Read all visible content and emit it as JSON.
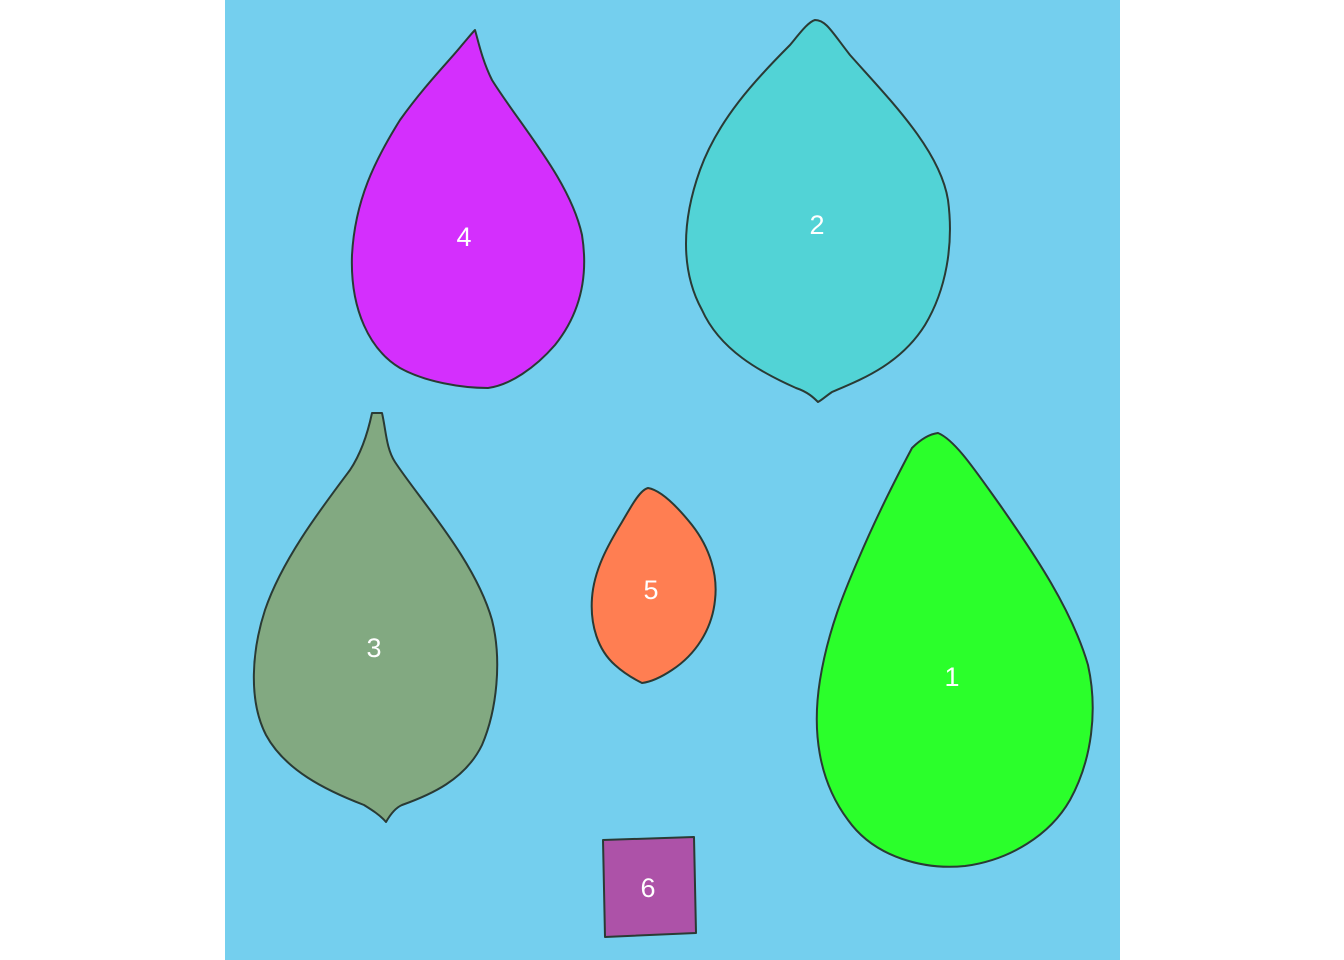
{
  "background_color": "#74cfee",
  "outline_color": "#2a3a34",
  "shapes": [
    {
      "id": "leaf-1",
      "label": "1",
      "kind": "leaf",
      "color": "#2bff2b"
    },
    {
      "id": "leaf-2",
      "label": "2",
      "kind": "leaf",
      "color": "#52d3d6"
    },
    {
      "id": "leaf-3",
      "label": "3",
      "kind": "leaf",
      "color": "#82a981"
    },
    {
      "id": "leaf-4",
      "label": "4",
      "kind": "leaf",
      "color": "#d42ffd"
    },
    {
      "id": "leaf-5",
      "label": "5",
      "kind": "leaf",
      "color": "#ff7e52"
    },
    {
      "id": "square-6",
      "label": "6",
      "kind": "reference-square",
      "color": "#ad52a8"
    }
  ]
}
